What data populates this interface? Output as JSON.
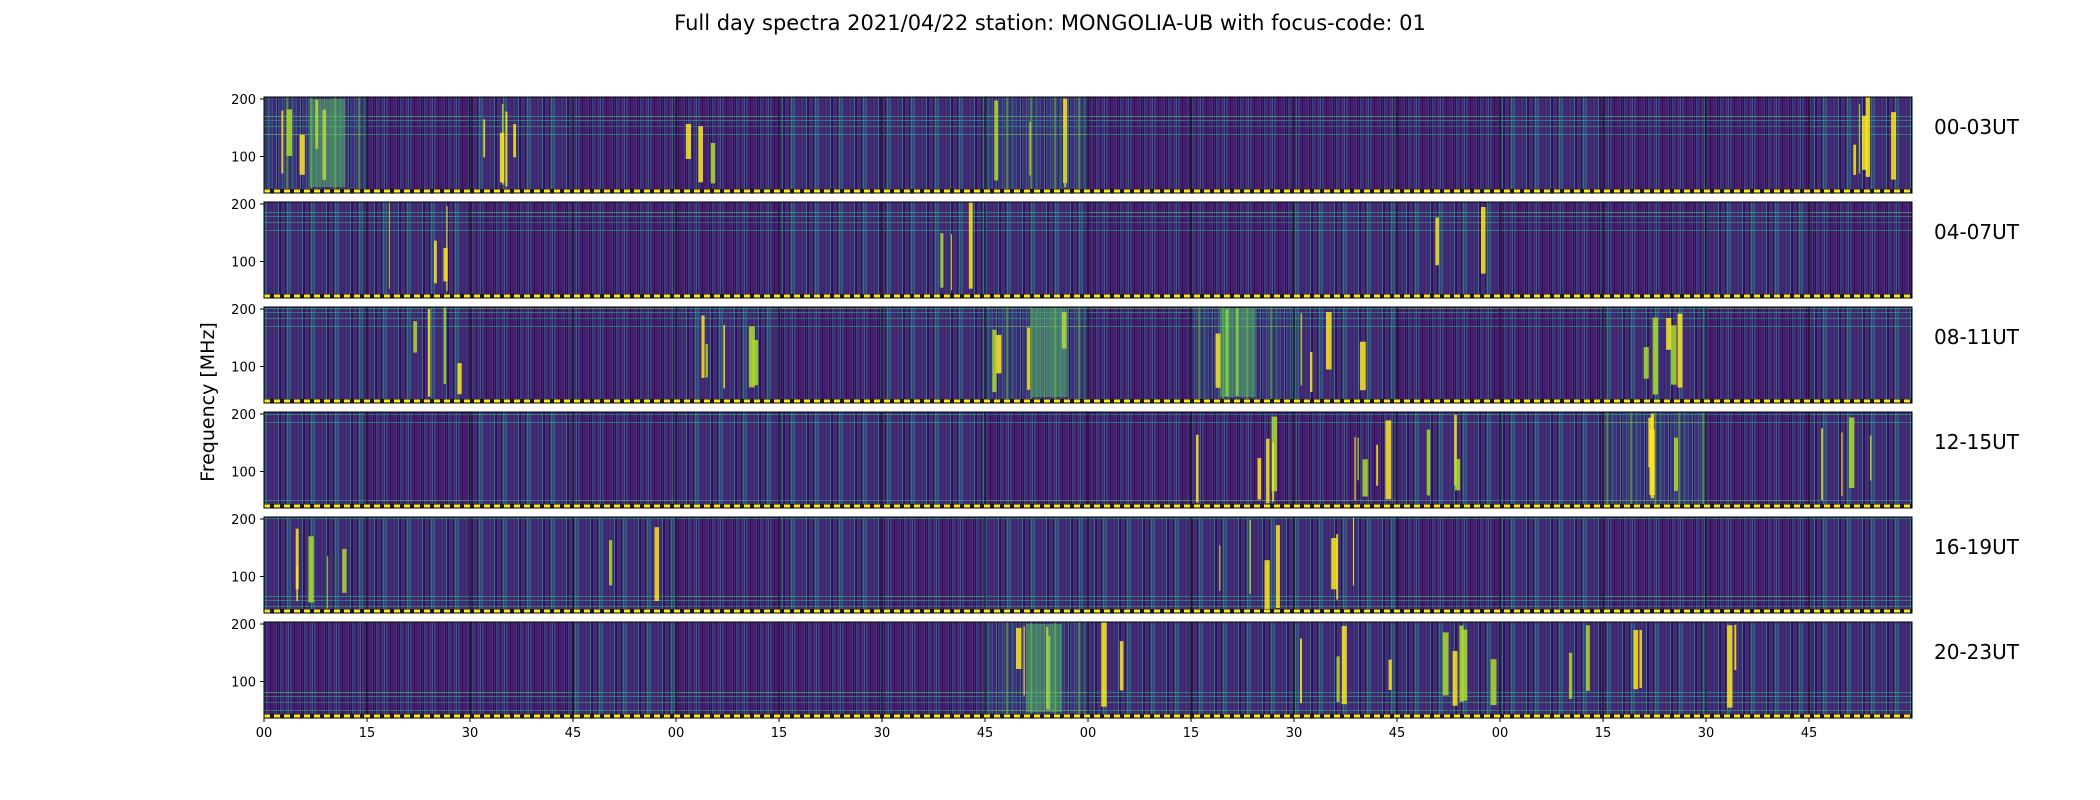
{
  "chart_data": {
    "type": "heatmap",
    "title": "Full day spectra 2021/04/22 station: MONGOLIA-UB with focus-code: 01",
    "ylabel": "Frequency [MHz]",
    "yticks": [
      "100",
      "200"
    ],
    "xticks": [
      "00",
      "15",
      "30",
      "45",
      "00",
      "15",
      "30",
      "45",
      "00",
      "15",
      "30",
      "45",
      "00",
      "15",
      "30",
      "45"
    ],
    "colormap": "viridis",
    "panels_per_row": 16,
    "rows": [
      {
        "label": "00-03UT",
        "bright_panels": [
          0,
          2,
          4,
          7,
          15
        ],
        "activity": [
          0.9,
          0.3,
          0.5,
          0.2,
          0.15,
          0.4,
          0.5,
          0.7,
          0.2,
          0.3,
          0.2,
          0.2,
          0.4,
          0.2,
          0.3,
          0.6
        ]
      },
      {
        "label": "04-07UT",
        "bright_panels": [
          1,
          6,
          11
        ],
        "activity": [
          0.35,
          0.5,
          0.3,
          0.2,
          0.3,
          0.35,
          0.6,
          0.45,
          0.3,
          0.3,
          0.4,
          0.5,
          0.25,
          0.3,
          0.35,
          0.3
        ]
      },
      {
        "label": "08-11UT",
        "bright_panels": [
          1,
          4,
          7,
          9,
          10,
          13
        ],
        "activity": [
          0.4,
          0.35,
          0.25,
          0.3,
          0.5,
          0.3,
          0.4,
          0.9,
          0.3,
          0.8,
          0.55,
          0.3,
          0.3,
          0.5,
          0.3,
          0.4
        ]
      },
      {
        "label": "12-15UT",
        "bright_panels": [
          9,
          10,
          11,
          13,
          15
        ],
        "activity": [
          0.35,
          0.3,
          0.4,
          0.2,
          0.45,
          0.4,
          0.35,
          0.3,
          0.3,
          0.25,
          0.3,
          0.6,
          0.4,
          0.7,
          0.25,
          0.5
        ]
      },
      {
        "label": "16-19UT",
        "bright_panels": [
          0,
          3,
          9,
          10
        ],
        "activity": [
          0.45,
          0.4,
          0.5,
          0.55,
          0.3,
          0.35,
          0.3,
          0.4,
          0.35,
          0.35,
          0.55,
          0.3,
          0.35,
          0.3,
          0.3,
          0.35
        ]
      },
      {
        "label": "20-23UT",
        "bright_panels": [
          7,
          8,
          10,
          11,
          12,
          13,
          14
        ],
        "activity": [
          0.3,
          0.25,
          0.3,
          0.4,
          0.25,
          0.2,
          0.25,
          0.9,
          0.5,
          0.55,
          0.35,
          0.45,
          0.6,
          0.55,
          0.5,
          0.4
        ]
      }
    ]
  }
}
